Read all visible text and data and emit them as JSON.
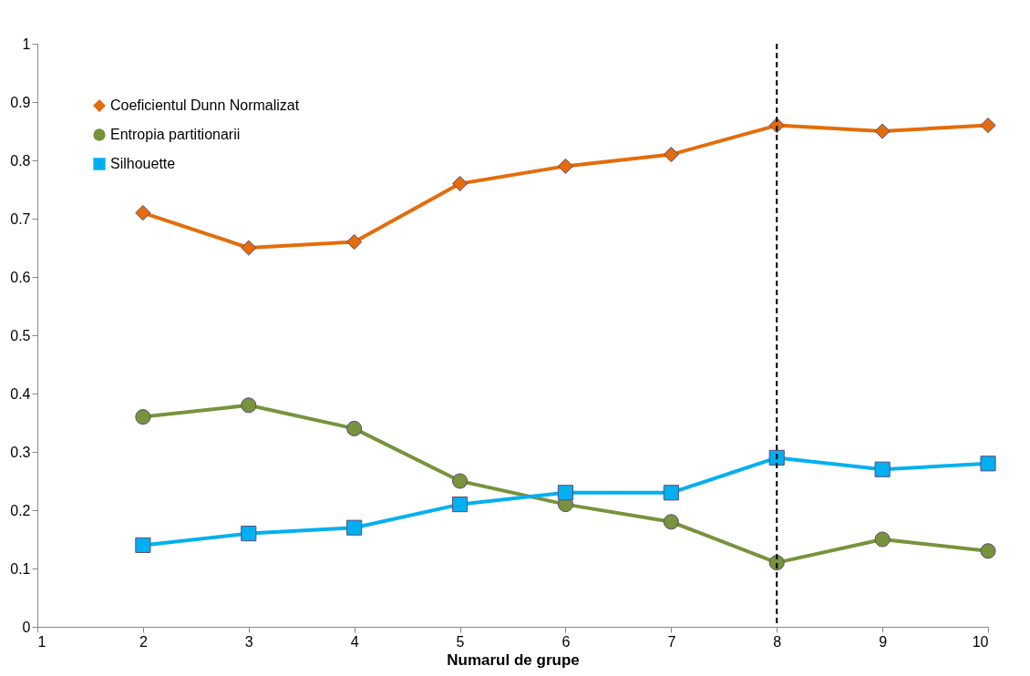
{
  "chart_data": {
    "type": "line",
    "xlabel": "Numarul de grupe",
    "x": [
      2,
      3,
      4,
      5,
      6,
      7,
      8,
      9,
      10
    ],
    "xlim": [
      1,
      10
    ],
    "xticks": [
      1,
      2,
      3,
      4,
      5,
      6,
      7,
      8,
      9,
      10
    ],
    "ylim": [
      0,
      1
    ],
    "yticks": [
      0,
      0.1,
      0.2,
      0.3,
      0.4,
      0.5,
      0.6,
      0.7,
      0.8,
      0.9,
      1
    ],
    "legend": "top left",
    "grid": false,
    "line_style": "solid",
    "series": [
      {
        "name": "Coeficientul Dunn Normalizat",
        "color": "#e46c0a",
        "marker": "diamond",
        "values": [
          0.71,
          0.65,
          0.66,
          0.76,
          0.79,
          0.81,
          0.86,
          0.85,
          0.86
        ]
      },
      {
        "name": "Entropia partitionarii",
        "color": "#77933c",
        "marker": "circle",
        "values": [
          0.36,
          0.38,
          0.34,
          0.25,
          0.21,
          0.18,
          0.11,
          0.15,
          0.13
        ]
      },
      {
        "name": "Silhouette",
        "color": "#00b0f0",
        "marker": "square",
        "values": [
          0.14,
          0.16,
          0.17,
          0.21,
          0.23,
          0.23,
          0.29,
          0.27,
          0.28
        ]
      }
    ],
    "ref_lines": [
      {
        "axis": "x",
        "value": 8,
        "color": "#000000",
        "line_style": "dashed"
      }
    ]
  }
}
